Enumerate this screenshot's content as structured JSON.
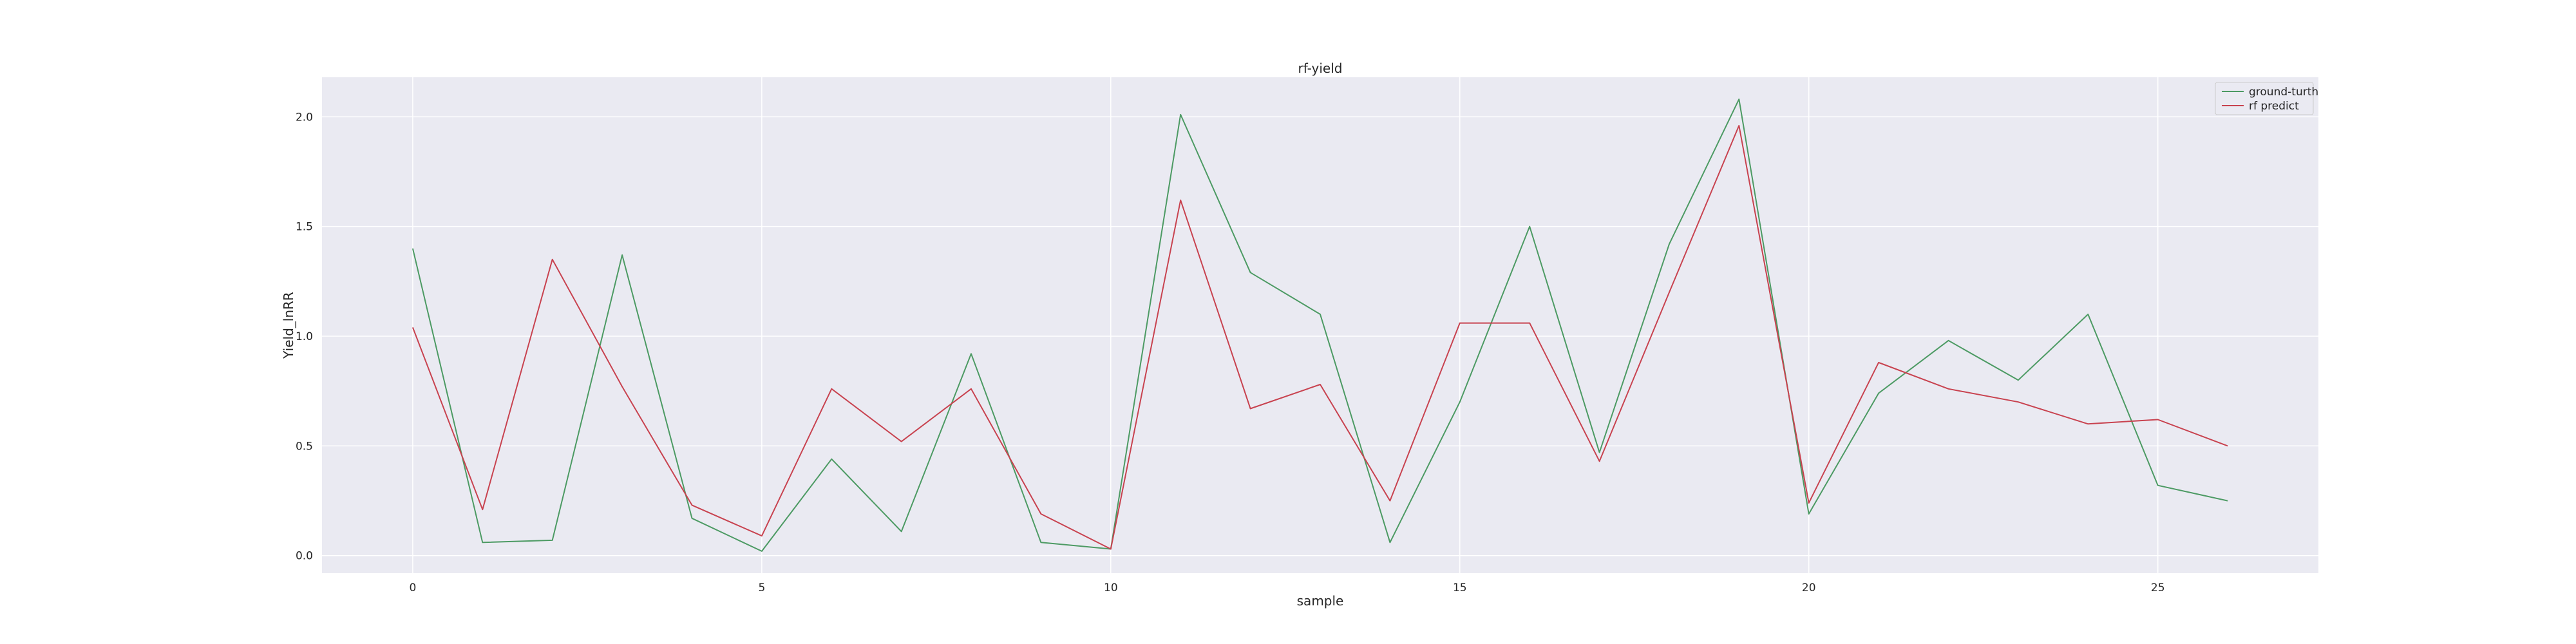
{
  "chart_data": {
    "type": "line",
    "title": "rf-yield",
    "xlabel": "sample",
    "ylabel": "Yield_lnRR",
    "xlim": [
      -1.3,
      27.3
    ],
    "ylim": [
      -0.08,
      2.18
    ],
    "xticks": [
      0,
      5,
      10,
      15,
      20,
      25
    ],
    "yticks": [
      0.0,
      0.5,
      1.0,
      1.5,
      2.0
    ],
    "xtick_labels": [
      "0",
      "5",
      "10",
      "15",
      "20",
      "25"
    ],
    "ytick_labels": [
      "0.0",
      "0.5",
      "1.0",
      "1.5",
      "2.0"
    ],
    "grid": true,
    "legend_position": "top-right",
    "background_color": "#eaeaf2",
    "x": [
      0,
      1,
      2,
      3,
      4,
      5,
      6,
      7,
      8,
      9,
      10,
      11,
      12,
      13,
      14,
      15,
      16,
      17,
      18,
      19,
      20,
      21,
      22,
      23,
      24,
      25,
      26
    ],
    "series": [
      {
        "name": "ground-turth",
        "color": "#4c9a63",
        "values": [
          1.4,
          0.06,
          0.07,
          1.37,
          0.17,
          0.02,
          0.44,
          0.11,
          0.92,
          0.06,
          0.03,
          2.01,
          1.29,
          1.1,
          0.06,
          0.7,
          1.5,
          0.47,
          1.42,
          2.08,
          0.19,
          0.74,
          0.98,
          0.8,
          1.1,
          0.32,
          0.25
        ]
      },
      {
        "name": "rf predict",
        "color": "#c8424f",
        "values": [
          1.04,
          0.21,
          1.35,
          0.77,
          0.23,
          0.09,
          0.76,
          0.52,
          0.76,
          0.19,
          0.03,
          1.62,
          0.67,
          0.78,
          0.25,
          1.06,
          1.06,
          0.43,
          1.2,
          1.96,
          0.24,
          0.88,
          0.76,
          0.7,
          0.6,
          0.62,
          0.5
        ]
      }
    ]
  }
}
